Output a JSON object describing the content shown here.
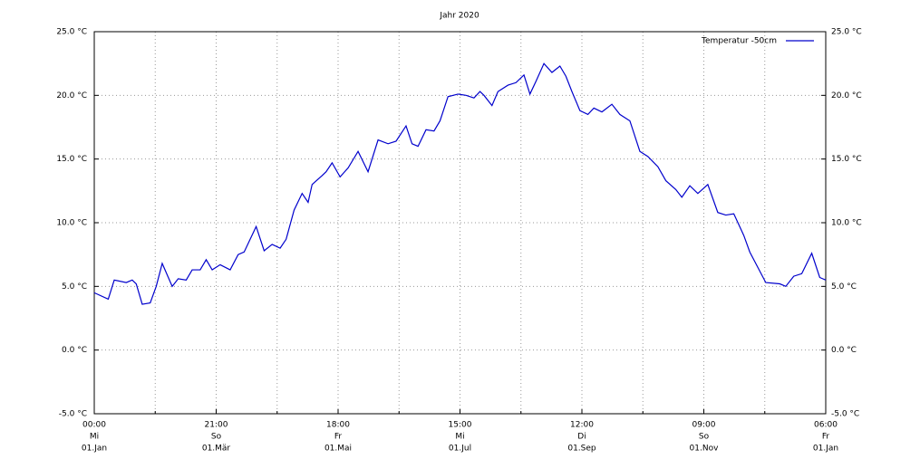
{
  "chart_data": {
    "type": "line",
    "title": "Jahr 2020",
    "x": [
      0,
      7,
      10,
      16,
      19,
      21,
      24,
      28,
      31,
      34,
      39,
      42,
      46,
      49,
      53,
      56,
      59,
      63,
      68,
      72,
      75,
      81,
      85,
      89,
      93,
      96,
      100,
      104,
      107,
      109,
      114,
      116,
      119,
      123,
      127,
      132,
      137,
      142,
      147,
      151,
      156,
      159,
      162,
      166,
      170,
      173,
      177,
      182,
      186,
      190,
      193,
      195,
      199,
      202,
      207,
      211,
      215,
      218,
      221,
      225,
      229,
      233,
      236,
      239,
      243,
      247,
      250,
      254,
      259,
      263,
      268,
      273,
      277,
      282,
      286,
      291,
      294,
      298,
      302,
      307,
      312,
      316,
      320,
      325,
      328,
      332,
      336,
      343,
      346,
      350,
      354,
      359,
      363,
      366
    ],
    "series": [
      {
        "name": "Temperatur -50cm",
        "color": "#0000cc",
        "values": [
          4.5,
          4.0,
          5.5,
          5.3,
          5.5,
          5.2,
          3.6,
          3.7,
          5.0,
          6.8,
          5.0,
          5.6,
          5.5,
          6.3,
          6.3,
          7.1,
          6.3,
          6.7,
          6.3,
          7.5,
          7.7,
          9.7,
          7.8,
          8.3,
          8.0,
          8.7,
          11.0,
          12.3,
          11.6,
          13.0,
          13.7,
          14.0,
          14.7,
          13.6,
          14.3,
          15.6,
          14.0,
          16.5,
          16.2,
          16.4,
          17.6,
          16.2,
          16.0,
          17.3,
          17.2,
          18.0,
          19.9,
          20.1,
          20.0,
          19.8,
          20.3,
          20.0,
          19.2,
          20.3,
          20.8,
          21.0,
          21.6,
          20.1,
          21.1,
          22.5,
          21.8,
          22.3,
          21.5,
          20.3,
          18.8,
          18.5,
          19.0,
          18.7,
          19.3,
          18.5,
          18.0,
          15.6,
          15.2,
          14.4,
          13.3,
          12.6,
          12.0,
          12.9,
          12.3,
          13.0,
          10.8,
          10.6,
          10.7,
          9.0,
          7.7,
          6.5,
          5.3,
          5.2,
          5.0,
          5.8,
          6.0,
          7.6,
          5.7,
          5.5
        ]
      }
    ],
    "xlim": [
      0,
      366
    ],
    "xticks": [
      {
        "value": 0,
        "label": [
          "00:00",
          "Mi",
          "01.Jan"
        ]
      },
      {
        "value": 61,
        "label": [
          "21:00",
          "So",
          "01.Mär"
        ]
      },
      {
        "value": 122,
        "label": [
          "18:00",
          "Fr",
          "01.Mai"
        ]
      },
      {
        "value": 183,
        "label": [
          "15:00",
          "Mi",
          "01.Jul"
        ]
      },
      {
        "value": 244,
        "label": [
          "12:00",
          "Di",
          "01.Sep"
        ]
      },
      {
        "value": 305,
        "label": [
          "09:00",
          "So",
          "01.Nov"
        ]
      },
      {
        "value": 366,
        "label": [
          "06:00",
          "Fr",
          "01.Jan"
        ]
      }
    ],
    "xminor": [
      30.5,
      91.5,
      152.5,
      213.5,
      274.5,
      335.5
    ],
    "ylim": [
      -5,
      25
    ],
    "yticks": [
      {
        "value": -5,
        "label": "-5.0 °C"
      },
      {
        "value": 0,
        "label": "0.0 °C"
      },
      {
        "value": 5,
        "label": "5.0 °C"
      },
      {
        "value": 10,
        "label": "10.0 °C"
      },
      {
        "value": 15,
        "label": "15.0 °C"
      },
      {
        "value": 20,
        "label": "20.0 °C"
      },
      {
        "value": 25,
        "label": "25.0 °C"
      }
    ],
    "y2lim": [
      -5,
      25
    ],
    "y2ticks": [
      {
        "value": -5,
        "label": "-5.0 °C"
      },
      {
        "value": 0,
        "label": "0.0 °C"
      },
      {
        "value": 5,
        "label": "5.0 °C"
      },
      {
        "value": 10,
        "label": "10.0 °C"
      },
      {
        "value": 15,
        "label": "15.0 °C"
      },
      {
        "value": 20,
        "label": "20.0 °C"
      },
      {
        "value": 25,
        "label": "25.0 °C"
      }
    ],
    "grid": true,
    "legend": "top-right"
  }
}
